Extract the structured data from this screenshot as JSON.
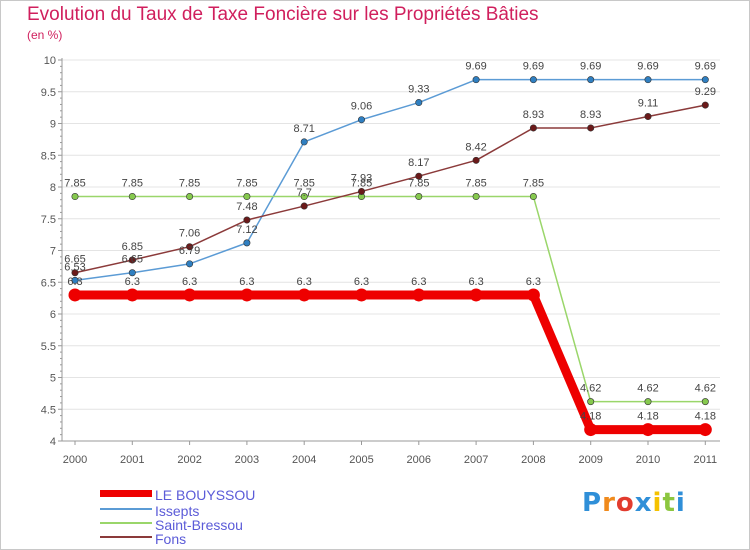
{
  "header": {
    "title": "Evolution du Taux de Taxe Foncière sur les Propriétés Bâties",
    "subtitle": "(en %)"
  },
  "brand": {
    "text": "Proxiti",
    "letters": [
      "P",
      "r",
      "o",
      "x",
      "i",
      "t",
      "i"
    ],
    "colors": [
      "#2f8fd8",
      "#f08a1c",
      "#e23b2e",
      "#2f8fd8",
      "#f5c200",
      "#8cc63f",
      "#2f8fd8"
    ]
  },
  "chart_data": {
    "type": "line",
    "categories": [
      "2000",
      "2001",
      "2002",
      "2003",
      "2004",
      "2005",
      "2006",
      "2007",
      "2008",
      "2009",
      "2010",
      "2011"
    ],
    "ylim": [
      4,
      10
    ],
    "yticks": [
      "4",
      "4.5",
      "5",
      "5.5",
      "6",
      "6.5",
      "7",
      "7.5",
      "8",
      "8.5",
      "9",
      "9.5",
      "10"
    ],
    "grid": "horizontal",
    "legend_position": "bottom-left",
    "series": [
      {
        "name": "Issepts",
        "color": "#5b9bd5",
        "marker": "#2f7fc1",
        "values": [
          6.53,
          6.65,
          6.79,
          7.12,
          8.71,
          9.06,
          9.33,
          9.69,
          9.69,
          9.69,
          9.69,
          9.69
        ],
        "labels": [
          "6.53",
          "6.65",
          "6.79",
          "7.12",
          "8.71",
          "9.06",
          "9.33",
          "9.69",
          "9.69",
          "9.69",
          "9.69",
          "9.69"
        ]
      },
      {
        "name": "Saint-Bressou",
        "color": "#9ad66a",
        "marker": "#86c94e",
        "values": [
          7.85,
          7.85,
          7.85,
          7.85,
          7.85,
          7.85,
          7.85,
          7.85,
          7.85,
          4.62,
          4.62,
          4.62
        ],
        "labels": [
          "7.85",
          "7.85",
          "7.85",
          "7.85",
          "7.85",
          "7.85",
          "7.85",
          "7.85",
          "7.85",
          "4.62",
          "4.62",
          "4.62"
        ]
      },
      {
        "name": "Fons",
        "color": "#8b3a3a",
        "marker": "#6b1a1a",
        "values": [
          6.65,
          6.85,
          7.06,
          7.48,
          7.7,
          7.93,
          8.17,
          8.42,
          8.93,
          8.93,
          9.11,
          9.29
        ],
        "labels": [
          "6.65",
          "6.85",
          "7.06",
          "7.48",
          "7.7",
          "7.93",
          "8.17",
          "8.42",
          "8.93",
          "8.93",
          "9.11",
          "9.29"
        ]
      },
      {
        "name": "LE BOUYSSOU",
        "color": "#ee0000",
        "marker": "#ee0000",
        "values": [
          6.3,
          6.3,
          6.3,
          6.3,
          6.3,
          6.3,
          6.3,
          6.3,
          6.3,
          4.18,
          4.18,
          4.18
        ],
        "labels": [
          "6.3",
          "6.3",
          "6.3",
          "6.3",
          "6.3",
          "6.3",
          "6.3",
          "6.3",
          "6.3",
          "4.18",
          "4.18",
          "4.18"
        ]
      }
    ],
    "legend": [
      "LE BOUYSSOU",
      "Issepts",
      "Saint-Bressou",
      "Fons"
    ]
  }
}
